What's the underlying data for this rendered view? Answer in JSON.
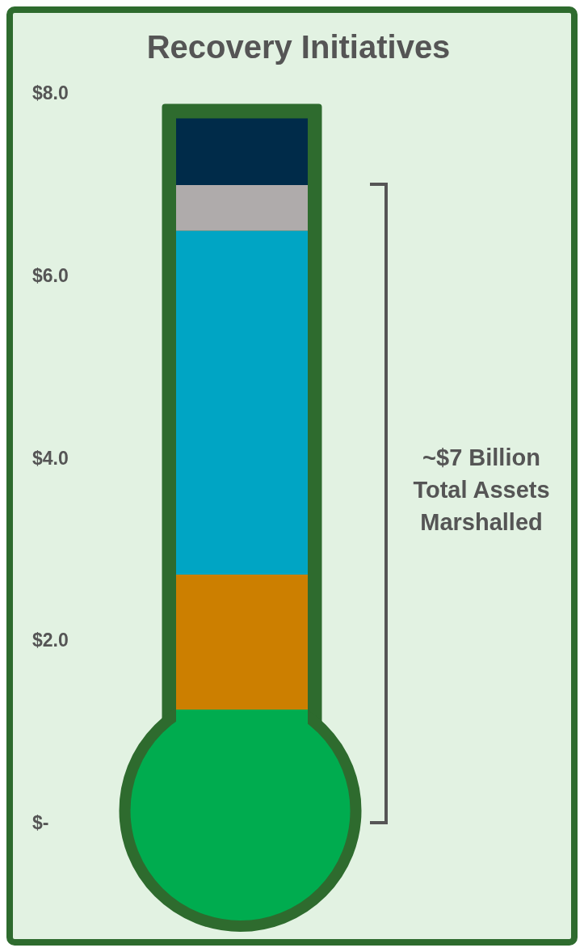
{
  "chart_data": {
    "type": "bar",
    "title": "Recovery Initiatives",
    "categories": [
      null
    ],
    "stacked": true,
    "tick_labels": "y",
    "series": [
      {
        "color": "#00ac4f",
        "values": [
          1.24
        ]
      },
      {
        "color": "#cc7f00",
        "values": [
          1.48
        ]
      },
      {
        "color": "#00a5c4",
        "values": [
          3.77
        ]
      },
      {
        "color": "#afabab",
        "values": [
          0.5
        ]
      },
      {
        "color": "#002b49",
        "values": [
          0.73
        ]
      }
    ],
    "ylim": [
      0,
      8
    ],
    "yticks": [
      {
        "value": 0,
        "label": "$-"
      },
      {
        "value": 2,
        "label": "$2.0"
      },
      {
        "value": 4,
        "label": "$4.0"
      },
      {
        "value": 6,
        "label": "$6.0"
      },
      {
        "value": 8,
        "label": "$8.0"
      }
    ],
    "annotations": [
      "~$7 Billion Total Assets Marshalled"
    ]
  }
}
